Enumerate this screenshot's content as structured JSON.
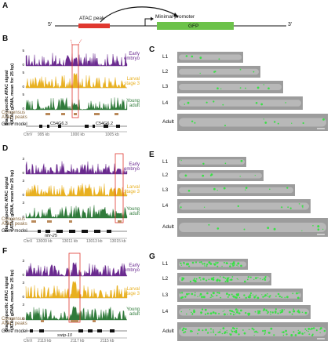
{
  "panels": {
    "A": {
      "letter": "A",
      "five_prime": "5'",
      "three_prime": "3'",
      "atac_peak_label": "ATAC peak",
      "min_promoter_label": "Minimal promoter",
      "gfp_label": "GFP",
      "colors": {
        "atac": "#e0382f",
        "gfp": "#6cc24a"
      }
    },
    "B": {
      "letter": "B",
      "ylabel_line1": "Stage-specific ATAC signal",
      "ylabel_line2": "(ATAC gDNA, mean for 25 bp)",
      "tracks": [
        {
          "name": "Early\nembryo",
          "label1": "Early",
          "label2": "embryo",
          "color": "#6a2a8f",
          "ymax": "5",
          "ymin": "0"
        },
        {
          "name": "Larval stage 3",
          "label1": "Larval",
          "label2": "stage 3",
          "color": "#e8b020",
          "ymax": "5",
          "ymin": "0"
        },
        {
          "name": "Young adult",
          "label1": "Young",
          "label2": "adult",
          "color": "#2f7a3a",
          "ymax": "5",
          "ymin": "0"
        }
      ],
      "consensus_label1": "Consensus",
      "consensus_label2": "ATAC peaks",
      "gene_model_label": "Gene model",
      "gene_names": [
        "C54G6.3",
        "C54G6.2"
      ],
      "chrom": "ChrV",
      "ticks": [
        "995 kb",
        "1000 kb",
        "1005 kb"
      ]
    },
    "D": {
      "letter": "D",
      "ylabel_line1": "Stage-specific ATAC signal",
      "ylabel_line2": "(ATAC gDNA, mean for 25 bp)",
      "tracks": [
        {
          "label1": "Early",
          "label2": "embryo",
          "color": "#6a2a8f",
          "ymax": "3",
          "ymin": "0"
        },
        {
          "label1": "Larval",
          "label2": "stage 3",
          "color": "#e8b020",
          "ymax": "3",
          "ymin": "0"
        },
        {
          "label1": "Young",
          "label2": "adult",
          "color": "#2f7a3a",
          "ymax": "3",
          "ymin": "0"
        }
      ],
      "consensus_label1": "Consensus",
      "consensus_label2": "ATAC peaks",
      "gene_model_label": "Gene model",
      "gene_names": [
        "nhr-25"
      ],
      "chrom": "ChrX",
      "ticks": [
        "13009 kb",
        "13011 kb",
        "13013 kb",
        "13015 kb"
      ]
    },
    "F": {
      "letter": "F",
      "ylabel_line1": "Stage-specific ATAC signal",
      "ylabel_line2": "(ATAC gDNA, mean for 25 bp)",
      "tracks": [
        {
          "label1": "Early",
          "label2": "embryo",
          "color": "#6a2a8f",
          "ymax": "3",
          "ymin": "0"
        },
        {
          "label1": "Larval",
          "label2": "stage 3",
          "color": "#e8b020",
          "ymax": "3",
          "ymin": "0"
        },
        {
          "label1": "Young",
          "label2": "adult",
          "color": "#2f7a3a",
          "ymax": "3",
          "ymin": "0"
        }
      ],
      "consensus_label1": "Consensus",
      "consensus_label2": "ATAC peaks",
      "gene_model_label": "Gene model",
      "gene_names": [
        "swip-10"
      ],
      "chrom": "ChrX",
      "ticks": [
        "2119 kb",
        "2117 kb",
        "2115 kb"
      ]
    },
    "C": {
      "letter": "C",
      "stages": [
        "L1",
        "L2",
        "L3",
        "L4",
        "Adult"
      ]
    },
    "E": {
      "letter": "E",
      "stages": [
        "L1",
        "L2",
        "L3",
        "L4",
        "Adult"
      ]
    },
    "G": {
      "letter": "G",
      "stages": [
        "L1",
        "L2",
        "L3",
        "L4",
        "Adult"
      ]
    }
  }
}
